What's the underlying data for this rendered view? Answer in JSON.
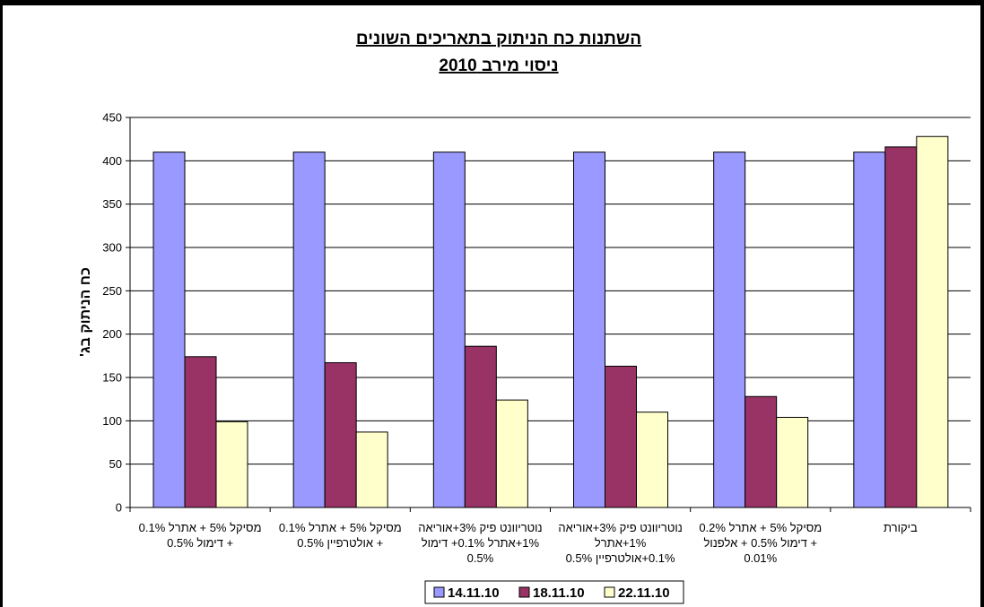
{
  "chart_data": {
    "type": "bar",
    "title": [
      "השתנות כח הניתוק בתאריכים השונים",
      "ניסוי מירב 2010"
    ],
    "ylabel": "כח הניתוק בג'",
    "xlabel": "",
    "ylim": [
      0,
      450
    ],
    "yticks": [
      0,
      50,
      100,
      150,
      200,
      250,
      300,
      350,
      400,
      450
    ],
    "categories": [
      [
        "מסיקל 5% + אתרל 0.1%",
        "+ דימול 0.5%"
      ],
      [
        "מסיקל 5% + אתרל 0.1%",
        "+ אולטרפיין 0.5%"
      ],
      [
        "נוטריוונט פיק 3%+אוריאה",
        "1%+אתרל 0.1%+ דימול",
        "0.5%"
      ],
      [
        "נוטריוונט פיק 3%+אוריאה",
        "1%+אתרל",
        "0.1%+אולטרפיין 0.5%"
      ],
      [
        "מסיקל 5% + אתרל 0.2%",
        "+ דימול 0.5% + אלפנול",
        "0.01%"
      ],
      [
        "ביקורת"
      ]
    ],
    "series": [
      {
        "name": "14.11.10",
        "color": "#9999ff",
        "values": [
          410,
          410,
          410,
          410,
          410,
          410
        ]
      },
      {
        "name": "18.11.10",
        "color": "#993366",
        "values": [
          174,
          167,
          186,
          163,
          128,
          416
        ]
      },
      {
        "name": "22.11.10",
        "color": "#ffffcc",
        "values": [
          99,
          87,
          124,
          110,
          104,
          428
        ]
      }
    ],
    "grid": true,
    "legend": "bottom"
  }
}
